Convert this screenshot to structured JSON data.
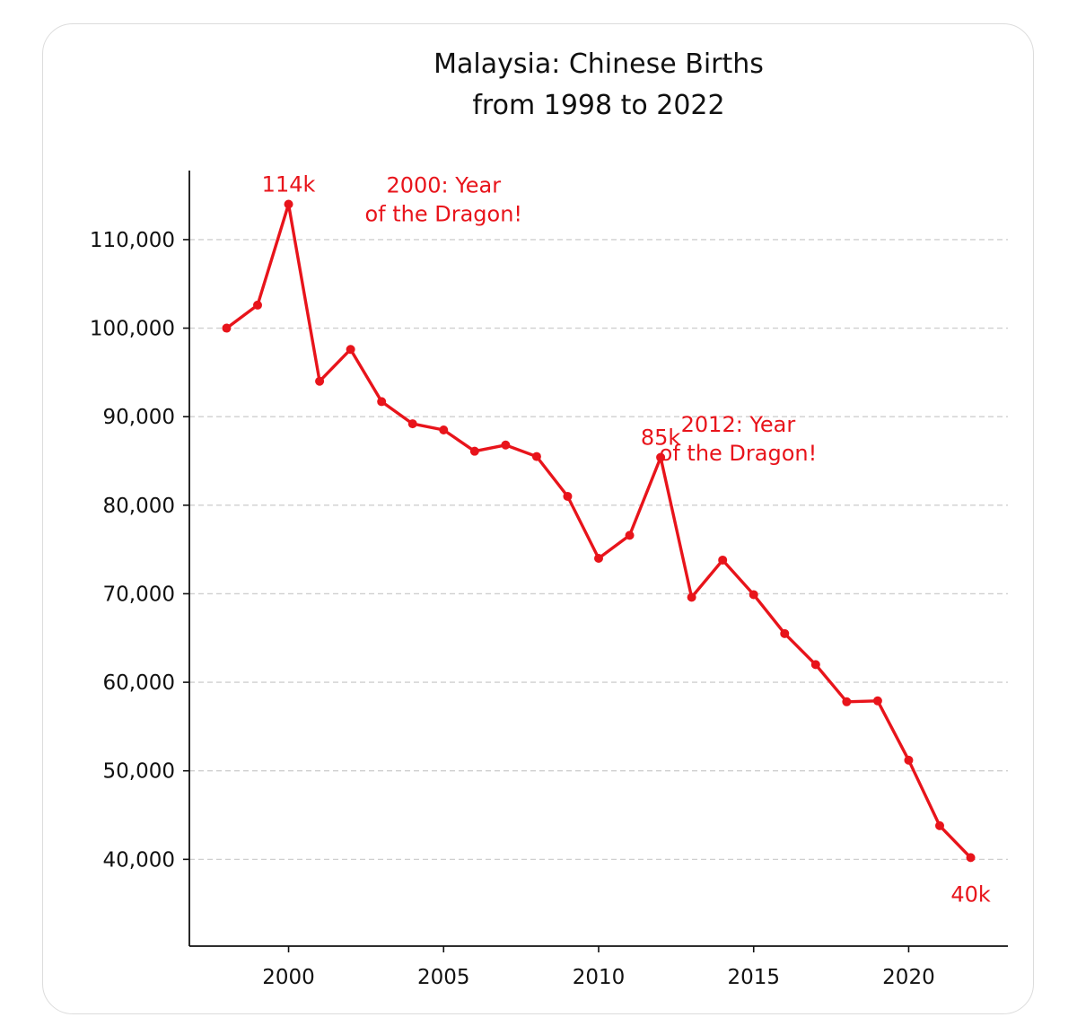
{
  "chart_data": {
    "type": "line",
    "title": [
      "Malaysia: Chinese Births",
      "from 1998 to 2022"
    ],
    "xlabel": "",
    "ylabel": "",
    "x": [
      1998,
      1999,
      2000,
      2001,
      2002,
      2003,
      2004,
      2005,
      2006,
      2007,
      2008,
      2009,
      2010,
      2011,
      2012,
      2013,
      2014,
      2015,
      2016,
      2017,
      2018,
      2019,
      2020,
      2021,
      2022
    ],
    "values": [
      100000,
      102600,
      114000,
      94000,
      97600,
      91700,
      89200,
      88500,
      86100,
      86800,
      85500,
      81000,
      74000,
      76600,
      85400,
      69600,
      73800,
      69900,
      65500,
      62000,
      57800,
      57900,
      51200,
      43800,
      40200
    ],
    "xlim": [
      1996.8,
      2023.2
    ],
    "ylim": [
      30200,
      117800
    ],
    "xticks": [
      2000,
      2005,
      2010,
      2015,
      2020
    ],
    "xtick_labels": [
      "2000",
      "2005",
      "2010",
      "2015",
      "2020"
    ],
    "yticks": [
      40000,
      50000,
      60000,
      70000,
      80000,
      90000,
      100000,
      110000
    ],
    "ytick_labels": [
      "40,000",
      "50,000",
      "60,000",
      "70,000",
      "80,000",
      "90,000",
      "100,000",
      "110,000"
    ],
    "grid": "horizontal dashed",
    "line_color": "#e8141b",
    "annotations": [
      {
        "text": "114k",
        "x": 2000,
        "y": 114000,
        "lines": [
          "114k"
        ]
      },
      {
        "text": "2000: Year of the Dragon!",
        "lines": [
          "2000: Year",
          "of the Dragon!"
        ],
        "x": 2005.0,
        "y": 115300
      },
      {
        "text": "85k",
        "x": 2012,
        "y": 85400,
        "lines": [
          "85k"
        ]
      },
      {
        "text": "2012: Year of the Dragon!",
        "lines": [
          "2012: Year",
          "of the Dragon!"
        ],
        "x": 2014.5,
        "y": 88300
      },
      {
        "text": "40k",
        "x": 2022,
        "y": 40200,
        "lines": [
          "40k"
        ]
      }
    ]
  }
}
